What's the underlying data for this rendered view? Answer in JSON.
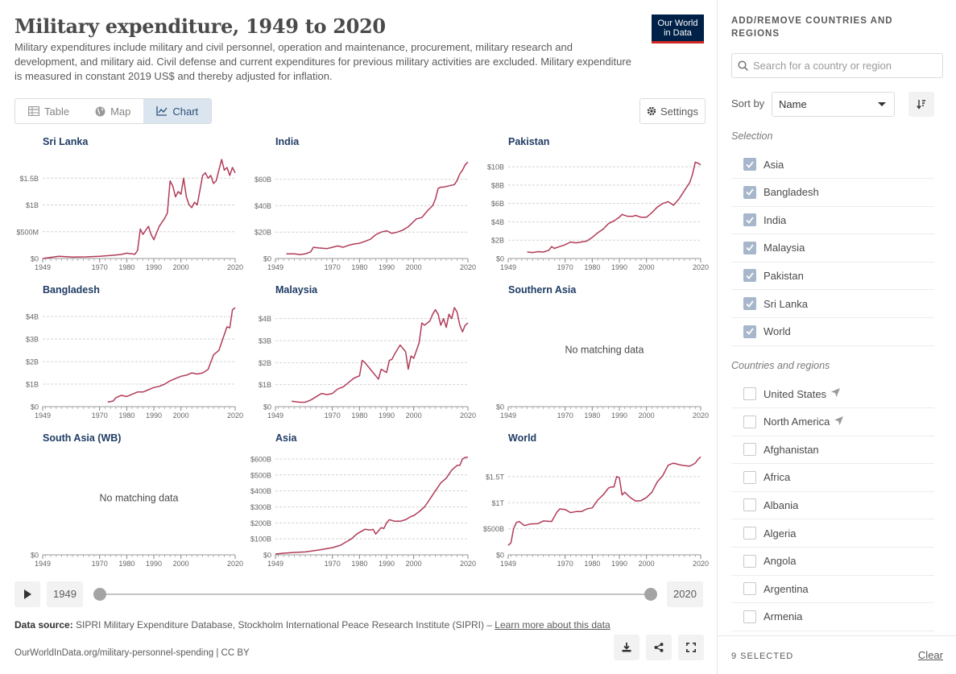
{
  "header": {
    "title": "Military expenditure, 1949 to 2020",
    "subtitle": "Military expenditures include military and civil personnel, operation and maintenance, procurement, military research and development, and military aid. Civil defense and current expenditures for previous military activities are excluded. Military expenditure is measured in constant 2019 US$ and thereby adjusted for inflation.",
    "logo_line1": "Our World",
    "logo_line2": "in Data"
  },
  "tabs": [
    {
      "label": "Table",
      "icon": "table-icon",
      "active": false
    },
    {
      "label": "Map",
      "icon": "globe-icon",
      "active": false
    },
    {
      "label": "Chart",
      "icon": "line-chart-icon",
      "active": true
    }
  ],
  "settings_label": "Settings",
  "colors": {
    "line": "#b13b57",
    "text": "#5b5b5b",
    "title": "#1f3c64",
    "grid": "#d4d4d4",
    "accent": "#dbe5f0"
  },
  "timeline": {
    "start_year": "1949",
    "end_year": "2020"
  },
  "footer": {
    "source_label": "Data source:",
    "source_text": "SIPRI Military Expenditure Database, Stockholm International Peace Research Institute (SIPRI) – ",
    "learn_more": "Learn more about this data",
    "url": "OurWorldInData.org/military-personnel-spending | CC BY"
  },
  "sidebar": {
    "heading": "ADD/REMOVE COUNTRIES AND REGIONS",
    "search_placeholder": "Search for a country or region",
    "sort_label": "Sort by",
    "sort_value": "Name",
    "selection_label": "Selection",
    "selection": [
      "Asia",
      "Bangladesh",
      "India",
      "Malaysia",
      "Pakistan",
      "Sri Lanka",
      "World"
    ],
    "countries_label": "Countries and regions",
    "countries": [
      {
        "name": "United States",
        "pinned": true
      },
      {
        "name": "North America",
        "pinned": true
      },
      {
        "name": "Afghanistan",
        "pinned": false
      },
      {
        "name": "Africa",
        "pinned": false
      },
      {
        "name": "Albania",
        "pinned": false
      },
      {
        "name": "Algeria",
        "pinned": false
      },
      {
        "name": "Angola",
        "pinned": false
      },
      {
        "name": "Argentina",
        "pinned": false
      },
      {
        "name": "Armenia",
        "pinned": false
      }
    ],
    "selected_count": "9 SELECTED",
    "clear_label": "Clear"
  },
  "chart_data": [
    {
      "type": "line",
      "title": "Sri Lanka",
      "xticks": [
        1949,
        1970,
        1980,
        1990,
        2000,
        2020
      ],
      "yticks": [
        0,
        500000000,
        1000000000,
        1500000000
      ],
      "ytick_labels": [
        "$0",
        "$500M",
        "$1B",
        "$1.5B"
      ],
      "ylim": [
        0,
        1850000000
      ],
      "x": [
        1949,
        1955,
        1960,
        1965,
        1970,
        1975,
        1978,
        1980,
        1983,
        1984,
        1985,
        1986,
        1988,
        1989,
        1990,
        1992,
        1994,
        1995,
        1996,
        1997,
        1998,
        1999,
        2000,
        2001,
        2002,
        2003,
        2004,
        2005,
        2006,
        2008,
        2009,
        2010,
        2011,
        2012,
        2013,
        2014,
        2015,
        2016,
        2017,
        2018,
        2019,
        2020
      ],
      "y": [
        0,
        40000000,
        25000000,
        30000000,
        40000000,
        60000000,
        75000000,
        100000000,
        80000000,
        150000000,
        550000000,
        450000000,
        600000000,
        450000000,
        350000000,
        600000000,
        750000000,
        850000000,
        1450000000,
        1350000000,
        1150000000,
        1250000000,
        1200000000,
        1500000000,
        1150000000,
        1000000000,
        950000000,
        1050000000,
        1000000000,
        1550000000,
        1600000000,
        1500000000,
        1550000000,
        1400000000,
        1450000000,
        1650000000,
        1850000000,
        1650000000,
        1700000000,
        1550000000,
        1700000000,
        1600000000
      ]
    },
    {
      "type": "line",
      "title": "India",
      "xticks": [
        1949,
        1970,
        1980,
        1990,
        2000,
        2020
      ],
      "yticks": [
        0,
        20000000000,
        40000000000,
        60000000000
      ],
      "ytick_labels": [
        "$0",
        "$20B",
        "$40B",
        "$60B"
      ],
      "ylim": [
        0,
        75000000000
      ],
      "x": [
        1953,
        1956,
        1958,
        1960,
        1962,
        1963,
        1965,
        1968,
        1970,
        1972,
        1974,
        1976,
        1978,
        1980,
        1982,
        1984,
        1986,
        1988,
        1990,
        1992,
        1994,
        1996,
        1998,
        2000,
        2001,
        2003,
        2005,
        2007,
        2008,
        2009,
        2010,
        2011,
        2013,
        2015,
        2016,
        2017,
        2018,
        2019,
        2020
      ],
      "y": [
        3500000000,
        3500000000,
        3000000000,
        3500000000,
        5000000000,
        8500000000,
        8000000000,
        7500000000,
        8500000000,
        9500000000,
        8500000000,
        10000000000,
        11000000000,
        11500000000,
        13000000000,
        14500000000,
        18000000000,
        20000000000,
        21000000000,
        19000000000,
        20000000000,
        21500000000,
        24000000000,
        28000000000,
        30000000000,
        31000000000,
        36000000000,
        40000000000,
        45000000000,
        53000000000,
        54000000000,
        54000000000,
        55000000000,
        56000000000,
        59000000000,
        64000000000,
        67000000000,
        71000000000,
        73000000000
      ]
    },
    {
      "type": "line",
      "title": "Pakistan",
      "xticks": [
        1949,
        1970,
        1980,
        1990,
        2000,
        2020
      ],
      "yticks": [
        0,
        2000000000,
        4000000000,
        6000000000,
        8000000000,
        10000000000
      ],
      "ytick_labels": [
        "$0",
        "$2B",
        "$4B",
        "$6B",
        "$8B",
        "$10B"
      ],
      "ylim": [
        0,
        10800000000
      ],
      "x": [
        1956,
        1958,
        1960,
        1962,
        1964,
        1965,
        1966,
        1968,
        1970,
        1972,
        1974,
        1976,
        1978,
        1980,
        1982,
        1984,
        1986,
        1988,
        1990,
        1991,
        1993,
        1995,
        1996,
        1998,
        2000,
        2002,
        2004,
        2006,
        2008,
        2010,
        2012,
        2014,
        2016,
        2017,
        2018,
        2019,
        2020
      ],
      "y": [
        700000000,
        650000000,
        750000000,
        700000000,
        900000000,
        1300000000,
        1100000000,
        1300000000,
        1500000000,
        1800000000,
        1700000000,
        1800000000,
        1900000000,
        2300000000,
        2800000000,
        3200000000,
        3800000000,
        4100000000,
        4500000000,
        4800000000,
        4600000000,
        4600000000,
        4700000000,
        4500000000,
        4500000000,
        5000000000,
        5600000000,
        6000000000,
        6200000000,
        5800000000,
        6500000000,
        7400000000,
        8300000000,
        9200000000,
        10500000000,
        10400000000,
        10200000000
      ]
    },
    {
      "type": "line",
      "title": "Bangladesh",
      "xticks": [
        1949,
        1970,
        1980,
        1990,
        2000,
        2020
      ],
      "yticks": [
        0,
        1000000000,
        2000000000,
        3000000000,
        4000000000
      ],
      "ytick_labels": [
        "$0",
        "$1B",
        "$2B",
        "$3B",
        "$4B"
      ],
      "ylim": [
        0,
        4400000000
      ],
      "x": [
        1973,
        1975,
        1976,
        1978,
        1980,
        1982,
        1984,
        1986,
        1988,
        1990,
        1992,
        1994,
        1996,
        1998,
        2000,
        2002,
        2004,
        2006,
        2008,
        2010,
        2012,
        2014,
        2016,
        2017,
        2018,
        2019,
        2020
      ],
      "y": [
        200000000,
        250000000,
        400000000,
        500000000,
        450000000,
        550000000,
        650000000,
        650000000,
        750000000,
        850000000,
        900000000,
        1000000000,
        1150000000,
        1250000000,
        1350000000,
        1400000000,
        1500000000,
        1450000000,
        1500000000,
        1650000000,
        2300000000,
        2500000000,
        3200000000,
        3550000000,
        3500000000,
        4300000000,
        4400000000
      ]
    },
    {
      "type": "line",
      "title": "Malaysia",
      "xticks": [
        1949,
        1970,
        1980,
        1990,
        2000,
        2020
      ],
      "yticks": [
        0,
        1000000000,
        2000000000,
        3000000000,
        4000000000
      ],
      "ytick_labels": [
        "$0",
        "$1B",
        "$2B",
        "$3B",
        "$4B"
      ],
      "ylim": [
        0,
        4500000000
      ],
      "x": [
        1955,
        1958,
        1960,
        1962,
        1964,
        1966,
        1968,
        1970,
        1972,
        1974,
        1976,
        1978,
        1980,
        1981,
        1982,
        1984,
        1986,
        1987,
        1988,
        1990,
        1991,
        1992,
        1993,
        1995,
        1997,
        1998,
        1999,
        2000,
        2002,
        2003,
        2004,
        2006,
        2007,
        2008,
        2009,
        2010,
        2011,
        2012,
        2013,
        2014,
        2015,
        2016,
        2017,
        2018,
        2019,
        2020
      ],
      "y": [
        250000000,
        200000000,
        200000000,
        300000000,
        450000000,
        600000000,
        550000000,
        600000000,
        800000000,
        900000000,
        1100000000,
        1300000000,
        1400000000,
        2100000000,
        2000000000,
        1700000000,
        1400000000,
        1250000000,
        1700000000,
        1550000000,
        2100000000,
        2150000000,
        2400000000,
        2800000000,
        2500000000,
        1700000000,
        2300000000,
        2200000000,
        2900000000,
        3800000000,
        3700000000,
        3900000000,
        4200000000,
        4400000000,
        4200000000,
        3700000000,
        4000000000,
        3600000000,
        4200000000,
        4000000000,
        4500000000,
        4300000000,
        3700000000,
        3400000000,
        3700000000,
        3800000000
      ]
    },
    {
      "type": "line",
      "title": "Southern Asia",
      "xticks": [
        1949,
        1970,
        1980,
        1990,
        2000,
        2020
      ],
      "yticks": [
        0
      ],
      "ytick_labels": [
        "$0"
      ],
      "ylim": [
        0,
        1
      ],
      "x": [],
      "y": [],
      "no_data_text": "No matching data"
    },
    {
      "type": "line",
      "title": "South Asia (WB)",
      "xticks": [
        1949,
        1970,
        1980,
        1990,
        2000,
        2020
      ],
      "yticks": [
        0
      ],
      "ytick_labels": [
        "$0"
      ],
      "ylim": [
        0,
        1
      ],
      "x": [],
      "y": [],
      "no_data_text": "No matching data"
    },
    {
      "type": "line",
      "title": "Asia",
      "xticks": [
        1949,
        1970,
        1980,
        1990,
        2000,
        2020
      ],
      "yticks": [
        0,
        100000000000,
        200000000000,
        300000000000,
        400000000000,
        500000000000,
        600000000000
      ],
      "ytick_labels": [
        "$0",
        "$100B",
        "$200B",
        "$300B",
        "$400B",
        "$500B",
        "$600B"
      ],
      "ylim": [
        0,
        620000000000
      ],
      "x": [
        1949,
        1952,
        1955,
        1960,
        1965,
        1970,
        1973,
        1975,
        1977,
        1979,
        1980,
        1982,
        1984,
        1985,
        1986,
        1988,
        1989,
        1990,
        1991,
        1993,
        1995,
        1997,
        1999,
        2000,
        2002,
        2004,
        2006,
        2008,
        2010,
        2012,
        2014,
        2016,
        2017,
        2018,
        2019,
        2020
      ],
      "y": [
        5000000000,
        10000000000,
        14000000000,
        18000000000,
        30000000000,
        45000000000,
        60000000000,
        80000000000,
        100000000000,
        130000000000,
        140000000000,
        160000000000,
        155000000000,
        160000000000,
        130000000000,
        170000000000,
        165000000000,
        200000000000,
        220000000000,
        210000000000,
        210000000000,
        220000000000,
        240000000000,
        245000000000,
        270000000000,
        300000000000,
        350000000000,
        400000000000,
        450000000000,
        480000000000,
        530000000000,
        560000000000,
        560000000000,
        600000000000,
        610000000000,
        610000000000
      ]
    },
    {
      "type": "line",
      "title": "World",
      "xticks": [
        1949,
        1970,
        1980,
        1990,
        2000,
        2020
      ],
      "yticks": [
        0,
        500000000000,
        1000000000000,
        1500000000000
      ],
      "ytick_labels": [
        "$0",
        "$500B",
        "$1T",
        "$1.5T"
      ],
      "ylim": [
        0,
        1900000000000
      ],
      "x": [
        1949,
        1950,
        1951,
        1952,
        1953,
        1955,
        1957,
        1960,
        1962,
        1965,
        1967,
        1968,
        1970,
        1972,
        1974,
        1976,
        1978,
        1980,
        1982,
        1984,
        1986,
        1987,
        1988,
        1989,
        1990,
        1991,
        1992,
        1994,
        1996,
        1998,
        2000,
        2002,
        2004,
        2006,
        2008,
        2010,
        2012,
        2014,
        2016,
        2018,
        2019,
        2020
      ],
      "y": [
        180000000000,
        230000000000,
        500000000000,
        620000000000,
        640000000000,
        560000000000,
        590000000000,
        600000000000,
        650000000000,
        640000000000,
        820000000000,
        880000000000,
        870000000000,
        810000000000,
        830000000000,
        830000000000,
        880000000000,
        900000000000,
        1050000000000,
        1150000000000,
        1280000000000,
        1300000000000,
        1300000000000,
        1500000000000,
        1480000000000,
        1150000000000,
        1200000000000,
        1100000000000,
        1030000000000,
        1040000000000,
        1100000000000,
        1200000000000,
        1400000000000,
        1520000000000,
        1720000000000,
        1760000000000,
        1730000000000,
        1710000000000,
        1700000000000,
        1760000000000,
        1830000000000,
        1880000000000
      ]
    }
  ]
}
